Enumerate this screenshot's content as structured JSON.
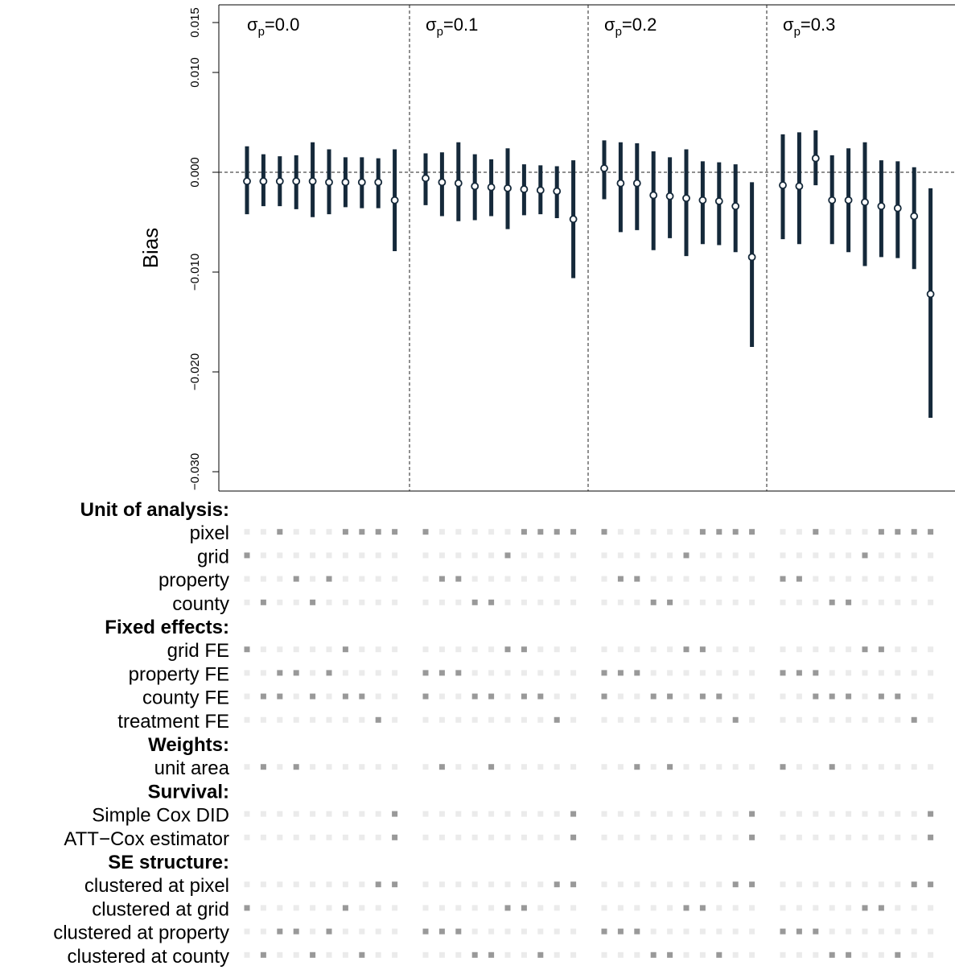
{
  "chart_data": {
    "type": "scatter",
    "ylabel": "Bias",
    "ylim": [
      -0.032,
      0.016
    ],
    "yticks": [
      {
        "value": 0.015,
        "label": "0.015"
      },
      {
        "value": 0.01,
        "label": "0.010"
      },
      {
        "value": 0.0,
        "label": "0.000"
      },
      {
        "value": -0.01,
        "label": "−0.010"
      },
      {
        "value": -0.02,
        "label": "−0.020"
      },
      {
        "value": -0.03,
        "label": "−0.030"
      }
    ],
    "reference_line": 0,
    "grid": false,
    "panels": [
      {
        "label": {
          "sym": "σ",
          "sub": "p",
          "val": "=0.0"
        },
        "estimate": [
          -0.0009,
          -0.0009,
          -0.0009,
          -0.0009,
          -0.0009,
          -0.001,
          -0.001,
          -0.001,
          -0.001,
          -0.0028
        ],
        "lower": [
          -0.0042,
          -0.0034,
          -0.0034,
          -0.0037,
          -0.0045,
          -0.0042,
          -0.0035,
          -0.0036,
          -0.0036,
          -0.0079
        ],
        "upper": [
          0.0026,
          0.0018,
          0.0016,
          0.0017,
          0.003,
          0.0023,
          0.0015,
          0.0015,
          0.0014,
          0.0023
        ]
      },
      {
        "label": {
          "sym": "σ",
          "sub": "p",
          "val": "=0.1"
        },
        "estimate": [
          -0.0006,
          -0.001,
          -0.0011,
          -0.0014,
          -0.0015,
          -0.0016,
          -0.0017,
          -0.0018,
          -0.0019,
          -0.0047
        ],
        "lower": [
          -0.0033,
          -0.0044,
          -0.0049,
          -0.0048,
          -0.0044,
          -0.0057,
          -0.0043,
          -0.0042,
          -0.0046,
          -0.0106
        ],
        "upper": [
          0.0019,
          0.002,
          0.003,
          0.0018,
          0.0013,
          0.0024,
          0.0008,
          0.0007,
          0.0006,
          0.0012
        ]
      },
      {
        "label": {
          "sym": "σ",
          "sub": "p",
          "val": "=0.2"
        },
        "estimate": [
          0.0004,
          -0.0011,
          -0.0011,
          -0.0023,
          -0.0024,
          -0.0026,
          -0.0028,
          -0.0029,
          -0.0034,
          -0.0085
        ],
        "lower": [
          -0.0027,
          -0.006,
          -0.0058,
          -0.0078,
          -0.0066,
          -0.0084,
          -0.0072,
          -0.0073,
          -0.008,
          -0.0175
        ],
        "upper": [
          0.0032,
          0.003,
          0.0029,
          0.0021,
          0.0015,
          0.0023,
          0.0011,
          0.001,
          0.0008,
          -0.001
        ]
      },
      {
        "label": {
          "sym": "σ",
          "sub": "p",
          "val": "=0.3"
        },
        "estimate": [
          -0.0013,
          -0.0014,
          0.0014,
          -0.0028,
          -0.0028,
          -0.003,
          -0.0034,
          -0.0036,
          -0.0044,
          -0.0122
        ],
        "lower": [
          -0.0067,
          -0.0072,
          -0.0013,
          -0.0072,
          -0.008,
          -0.0094,
          -0.0085,
          -0.0086,
          -0.0097,
          -0.0246
        ],
        "upper": [
          0.0038,
          0.004,
          0.0042,
          0.0017,
          0.0024,
          0.003,
          0.0012,
          0.0011,
          0.0005,
          -0.0016
        ]
      }
    ]
  },
  "specification_matrix": {
    "groups": [
      {
        "title": "Unit of analysis:",
        "rows": [
          {
            "label": "pixel",
            "active": [
              [
                2,
                6,
                7,
                8,
                9
              ],
              [
                0,
                6,
                7,
                8,
                9
              ],
              [
                0,
                6,
                7,
                8,
                9
              ],
              [
                2,
                6,
                7,
                8,
                9
              ]
            ]
          },
          {
            "label": "grid",
            "active": [
              [
                0
              ],
              [
                5
              ],
              [
                5
              ],
              [
                5
              ]
            ]
          },
          {
            "label": "property",
            "active": [
              [
                3,
                5
              ],
              [
                1,
                2
              ],
              [
                1,
                2
              ],
              [
                0,
                1
              ]
            ]
          },
          {
            "label": "county",
            "active": [
              [
                1,
                4
              ],
              [
                3,
                4
              ],
              [
                3,
                4
              ],
              [
                3,
                4
              ]
            ]
          }
        ]
      },
      {
        "title": "Fixed effects:",
        "rows": [
          {
            "label": "grid FE",
            "active": [
              [
                0,
                6
              ],
              [
                5,
                6
              ],
              [
                5,
                6
              ],
              [
                5,
                6
              ]
            ]
          },
          {
            "label": "property FE",
            "active": [
              [
                2,
                3,
                5
              ],
              [
                0,
                1,
                2
              ],
              [
                0,
                1,
                2
              ],
              [
                0,
                1,
                2
              ]
            ]
          },
          {
            "label": "county FE",
            "active": [
              [
                1,
                2,
                4,
                6,
                7
              ],
              [
                0,
                3,
                4,
                6,
                7
              ],
              [
                0,
                3,
                4,
                6,
                7
              ],
              [
                2,
                3,
                4,
                6,
                7
              ]
            ]
          },
          {
            "label": "treatment FE",
            "active": [
              [
                8
              ],
              [
                8
              ],
              [
                8
              ],
              [
                8
              ]
            ]
          }
        ]
      },
      {
        "title": "Weights:",
        "rows": [
          {
            "label": "unit area",
            "active": [
              [
                1,
                3
              ],
              [
                1,
                4
              ],
              [
                2,
                4
              ],
              [
                0,
                3
              ]
            ]
          }
        ]
      },
      {
        "title": "Survival:",
        "rows": [
          {
            "label": "Simple Cox DID",
            "active": [
              [
                9
              ],
              [
                9
              ],
              [
                9
              ],
              [
                9
              ]
            ]
          },
          {
            "label": "ATT−Cox estimator",
            "active": [
              [
                9
              ],
              [
                9
              ],
              [
                9
              ],
              [
                9
              ]
            ]
          }
        ]
      },
      {
        "title": "SE structure:",
        "rows": [
          {
            "label": "clustered at pixel",
            "active": [
              [
                8,
                9
              ],
              [
                8,
                9
              ],
              [
                8,
                9
              ],
              [
                8,
                9
              ]
            ]
          },
          {
            "label": "clustered at grid",
            "active": [
              [
                0,
                6
              ],
              [
                5,
                6
              ],
              [
                5,
                6
              ],
              [
                5,
                6
              ]
            ]
          },
          {
            "label": "clustered at property",
            "active": [
              [
                2,
                3,
                5
              ],
              [
                0,
                1,
                2
              ],
              [
                0,
                1,
                2
              ],
              [
                0,
                1,
                2
              ]
            ]
          },
          {
            "label": "clustered at county",
            "active": [
              [
                1,
                4,
                7
              ],
              [
                3,
                4,
                7
              ],
              [
                3,
                4,
                7
              ],
              [
                3,
                4,
                7
              ]
            ]
          }
        ]
      }
    ]
  },
  "colors": {
    "interval": "#15293a",
    "point_fill": "#ffffff",
    "active_marker": "#999999",
    "inactive_marker": "#ebebeb",
    "reference_line": "#222222"
  }
}
